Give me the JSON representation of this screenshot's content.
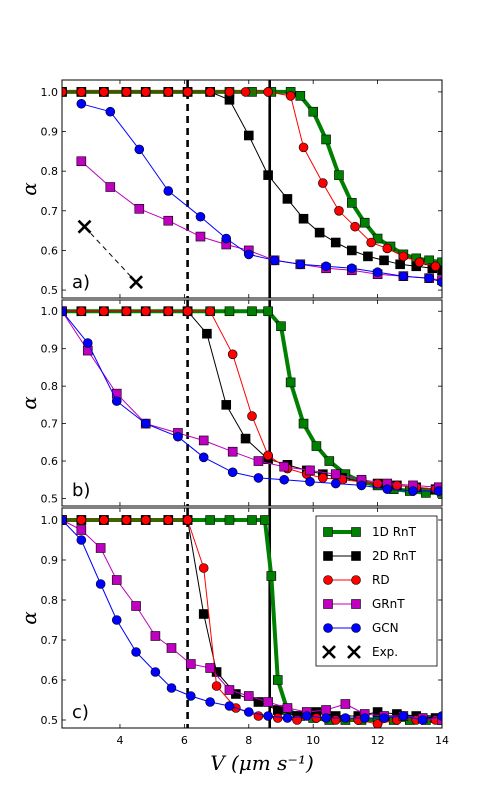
{
  "figure": {
    "xlabel": "V (μm s⁻¹)",
    "ylabel": "α"
  },
  "legend": {
    "entries": [
      {
        "label": "1D RnT",
        "series": "1D RnT"
      },
      {
        "label": "2D RnT",
        "series": "2D RnT"
      },
      {
        "label": "RD",
        "series": "RD"
      },
      {
        "label": "GRnT",
        "series": "GRnT"
      },
      {
        "label": "GCN",
        "series": "GCN"
      },
      {
        "label": "Exp.",
        "series": "Exp."
      }
    ]
  },
  "styles": {
    "1D RnT": {
      "color": "#008000",
      "marker": "square",
      "line_width": 4
    },
    "2D RnT": {
      "color": "#000000",
      "marker": "square",
      "line_width": 1
    },
    "RD": {
      "color": "#ff0000",
      "marker": "circle",
      "line_width": 1
    },
    "GRnT": {
      "color": "#bf00bf",
      "marker": "square",
      "line_width": 1
    },
    "GCN": {
      "color": "#0000ff",
      "marker": "circle",
      "line_width": 1
    },
    "Exp.": {
      "color": "#000000",
      "marker": "x",
      "line_width": 1,
      "dashed": true
    }
  },
  "chart_data": [
    {
      "type": "line",
      "panel_label": "a)",
      "xlim": [
        2.2,
        14
      ],
      "ylim": [
        0.48,
        1.03
      ],
      "xticks": [
        4,
        6,
        8,
        10,
        12,
        14
      ],
      "yticks": [
        0.5,
        0.6,
        0.7,
        0.8,
        0.9,
        1.0
      ],
      "xtick_labels_shown": false,
      "vlines": [
        {
          "x": 6.1,
          "style": "dashed"
        },
        {
          "x": 8.65,
          "style": "solid"
        }
      ],
      "series": [
        {
          "name": "1D RnT",
          "x": [
            2.2,
            2.8,
            3.5,
            4.2,
            4.8,
            5.5,
            6.1,
            6.8,
            7.4,
            8.1,
            8.7,
            9.3,
            9.6,
            10.0,
            10.4,
            10.8,
            11.2,
            11.6,
            12.0,
            12.4,
            12.8,
            13.2,
            13.6,
            14.0
          ],
          "y": [
            1.0,
            1.0,
            1.0,
            1.0,
            1.0,
            1.0,
            1.0,
            1.0,
            1.0,
            1.0,
            1.0,
            1.0,
            0.99,
            0.95,
            0.88,
            0.79,
            0.72,
            0.67,
            0.63,
            0.61,
            0.59,
            0.58,
            0.575,
            0.57
          ]
        },
        {
          "name": "2D RnT",
          "x": [
            2.2,
            2.8,
            3.5,
            4.2,
            4.8,
            5.5,
            6.1,
            6.8,
            7.4,
            8.0,
            8.6,
            9.2,
            9.7,
            10.2,
            10.7,
            11.2,
            11.7,
            12.2,
            12.7,
            13.2,
            13.7,
            14.0
          ],
          "y": [
            1.0,
            1.0,
            1.0,
            1.0,
            1.0,
            1.0,
            1.0,
            1.0,
            0.98,
            0.89,
            0.79,
            0.73,
            0.68,
            0.645,
            0.62,
            0.6,
            0.585,
            0.575,
            0.565,
            0.56,
            0.555,
            0.55
          ]
        },
        {
          "name": "RD",
          "x": [
            2.2,
            2.8,
            3.5,
            4.2,
            4.8,
            5.5,
            6.1,
            6.8,
            7.4,
            7.9,
            8.6,
            9.3,
            9.7,
            10.3,
            10.8,
            11.3,
            11.8,
            12.3,
            12.8,
            13.3,
            13.8
          ],
          "y": [
            1.0,
            1.0,
            1.0,
            1.0,
            1.0,
            1.0,
            1.0,
            1.0,
            1.0,
            1.0,
            1.0,
            0.99,
            0.86,
            0.77,
            0.7,
            0.66,
            0.62,
            0.605,
            0.585,
            0.57,
            0.56
          ]
        },
        {
          "name": "GRnT",
          "x": [
            2.8,
            3.7,
            4.6,
            5.5,
            6.5,
            7.3,
            8.0,
            8.8,
            9.6,
            10.4,
            11.2,
            12.0,
            12.8,
            13.6,
            14.0
          ],
          "y": [
            0.825,
            0.76,
            0.705,
            0.675,
            0.635,
            0.615,
            0.6,
            0.575,
            0.565,
            0.555,
            0.55,
            0.54,
            0.535,
            0.53,
            0.525
          ]
        },
        {
          "name": "GCN",
          "x": [
            2.8,
            3.7,
            4.6,
            5.5,
            6.5,
            7.3,
            8.0,
            8.8,
            9.6,
            10.4,
            11.2,
            12.0,
            12.8,
            13.6,
            14.0
          ],
          "y": [
            0.97,
            0.95,
            0.855,
            0.75,
            0.685,
            0.63,
            0.59,
            0.575,
            0.565,
            0.56,
            0.555,
            0.545,
            0.535,
            0.53,
            0.52
          ]
        },
        {
          "name": "Exp.",
          "x": [
            2.9,
            4.5
          ],
          "y": [
            0.66,
            0.52
          ]
        }
      ]
    },
    {
      "type": "line",
      "panel_label": "b)",
      "xlim": [
        2.2,
        14
      ],
      "ylim": [
        0.48,
        1.03
      ],
      "xticks": [
        4,
        6,
        8,
        10,
        12,
        14
      ],
      "yticks": [
        0.5,
        0.6,
        0.7,
        0.8,
        0.9,
        1.0
      ],
      "xtick_labels_shown": false,
      "vlines": [
        {
          "x": 6.1,
          "style": "dashed"
        },
        {
          "x": 8.65,
          "style": "solid"
        }
      ],
      "series": [
        {
          "name": "1D RnT",
          "x": [
            2.2,
            2.8,
            3.5,
            4.2,
            4.8,
            5.5,
            6.1,
            6.8,
            7.4,
            8.1,
            8.6,
            9.0,
            9.3,
            9.7,
            10.1,
            10.5,
            11.0,
            11.5,
            12.0,
            12.5,
            13.0,
            13.5,
            14.0
          ],
          "y": [
            1.0,
            1.0,
            1.0,
            1.0,
            1.0,
            1.0,
            1.0,
            1.0,
            1.0,
            1.0,
            1.0,
            0.96,
            0.81,
            0.7,
            0.64,
            0.6,
            0.565,
            0.545,
            0.535,
            0.525,
            0.52,
            0.515,
            0.515
          ]
        },
        {
          "name": "2D RnT",
          "x": [
            2.2,
            2.8,
            3.5,
            4.2,
            4.8,
            5.5,
            6.1,
            6.7,
            7.3,
            7.9,
            8.6,
            9.2,
            9.8,
            10.3,
            10.9,
            11.5,
            12.0,
            12.6,
            13.2,
            13.8
          ],
          "y": [
            1.0,
            1.0,
            1.0,
            1.0,
            1.0,
            1.0,
            1.0,
            0.94,
            0.75,
            0.66,
            0.605,
            0.59,
            0.575,
            0.565,
            0.555,
            0.545,
            0.54,
            0.535,
            0.53,
            0.525
          ]
        },
        {
          "name": "RD",
          "x": [
            2.2,
            2.8,
            3.5,
            4.2,
            4.8,
            5.5,
            6.1,
            6.8,
            7.5,
            8.1,
            8.6,
            9.2,
            9.8,
            10.3,
            10.9,
            11.5,
            12.0,
            12.6,
            13.2,
            13.8
          ],
          "y": [
            1.0,
            1.0,
            1.0,
            1.0,
            1.0,
            1.0,
            1.0,
            1.0,
            0.885,
            0.72,
            0.615,
            0.58,
            0.565,
            0.555,
            0.55,
            0.545,
            0.54,
            0.535,
            0.53,
            0.525
          ]
        },
        {
          "name": "GRnT",
          "x": [
            2.2,
            3.0,
            3.9,
            4.8,
            5.8,
            6.6,
            7.5,
            8.3,
            9.1,
            9.9,
            10.7,
            11.5,
            12.3,
            13.1,
            13.9
          ],
          "y": [
            1.0,
            0.895,
            0.78,
            0.7,
            0.675,
            0.655,
            0.625,
            0.6,
            0.585,
            0.575,
            0.565,
            0.55,
            0.54,
            0.535,
            0.53
          ]
        },
        {
          "name": "GCN",
          "x": [
            2.2,
            3.0,
            3.9,
            4.8,
            5.8,
            6.6,
            7.5,
            8.3,
            9.1,
            9.9,
            10.7,
            11.5,
            12.3,
            13.1,
            13.9
          ],
          "y": [
            1.0,
            0.915,
            0.76,
            0.7,
            0.665,
            0.61,
            0.57,
            0.555,
            0.55,
            0.545,
            0.54,
            0.535,
            0.525,
            0.52,
            0.52
          ]
        }
      ]
    },
    {
      "type": "line",
      "panel_label": "c)",
      "xlim": [
        2.2,
        14
      ],
      "ylim": [
        0.48,
        1.03
      ],
      "xticks": [
        4,
        6,
        8,
        10,
        12,
        14
      ],
      "yticks": [
        0.5,
        0.6,
        0.7,
        0.8,
        0.9,
        1.0
      ],
      "xtick_labels_shown": true,
      "vlines": [
        {
          "x": 6.1,
          "style": "dashed"
        },
        {
          "x": 8.65,
          "style": "solid"
        }
      ],
      "series": [
        {
          "name": "1D RnT",
          "x": [
            2.2,
            2.8,
            3.5,
            4.2,
            4.8,
            5.5,
            6.1,
            6.8,
            7.4,
            8.1,
            8.5,
            8.7,
            8.9,
            9.2,
            9.6,
            10.0,
            10.5,
            11.0,
            11.5,
            12.0,
            12.5,
            13.0,
            13.5,
            14.0
          ],
          "y": [
            1.0,
            1.0,
            1.0,
            1.0,
            1.0,
            1.0,
            1.0,
            1.0,
            1.0,
            1.0,
            1.0,
            0.86,
            0.6,
            0.525,
            0.51,
            0.505,
            0.5,
            0.5,
            0.5,
            0.5,
            0.5,
            0.5,
            0.5,
            0.5
          ]
        },
        {
          "name": "2D RnT",
          "x": [
            2.2,
            2.8,
            3.5,
            4.2,
            4.8,
            5.5,
            6.1,
            6.6,
            7.0,
            7.6,
            8.3,
            8.9,
            9.5,
            10.1,
            10.7,
            11.4,
            12.0,
            12.6,
            13.2,
            13.8
          ],
          "y": [
            1.0,
            1.0,
            1.0,
            1.0,
            1.0,
            1.0,
            1.0,
            0.765,
            0.62,
            0.565,
            0.545,
            0.525,
            0.51,
            0.52,
            0.51,
            0.51,
            0.52,
            0.515,
            0.51,
            0.505
          ]
        },
        {
          "name": "RD",
          "x": [
            2.2,
            2.8,
            3.5,
            4.2,
            4.8,
            5.5,
            6.1,
            6.6,
            7.0,
            7.6,
            8.3,
            8.9,
            9.5,
            10.1,
            10.7,
            11.4,
            12.0,
            12.6,
            13.2,
            13.8
          ],
          "y": [
            1.0,
            1.0,
            1.0,
            1.0,
            1.0,
            1.0,
            1.0,
            0.88,
            0.585,
            0.53,
            0.51,
            0.505,
            0.5,
            0.505,
            0.5,
            0.5,
            0.49,
            0.5,
            0.5,
            0.5
          ]
        },
        {
          "name": "GRnT",
          "x": [
            2.2,
            2.8,
            3.4,
            3.9,
            4.5,
            5.1,
            5.6,
            6.2,
            6.8,
            7.4,
            8.0,
            8.6,
            9.2,
            9.8,
            10.4,
            11.0,
            11.6,
            12.2,
            12.8,
            13.4,
            14.0
          ],
          "y": [
            1.0,
            0.975,
            0.93,
            0.85,
            0.785,
            0.71,
            0.68,
            0.64,
            0.63,
            0.575,
            0.56,
            0.545,
            0.53,
            0.52,
            0.525,
            0.54,
            0.515,
            0.51,
            0.51,
            0.505,
            0.5
          ]
        },
        {
          "name": "GCN",
          "x": [
            2.2,
            2.8,
            3.4,
            3.9,
            4.5,
            5.1,
            5.6,
            6.2,
            6.8,
            7.4,
            8.0,
            8.6,
            9.2,
            9.8,
            10.4,
            11.0,
            11.6,
            12.2,
            12.8,
            13.4,
            14.0
          ],
          "y": [
            1.0,
            0.95,
            0.84,
            0.75,
            0.67,
            0.62,
            0.58,
            0.56,
            0.545,
            0.535,
            0.52,
            0.51,
            0.505,
            0.51,
            0.505,
            0.505,
            0.505,
            0.505,
            0.51,
            0.5,
            0.51
          ]
        }
      ]
    }
  ]
}
